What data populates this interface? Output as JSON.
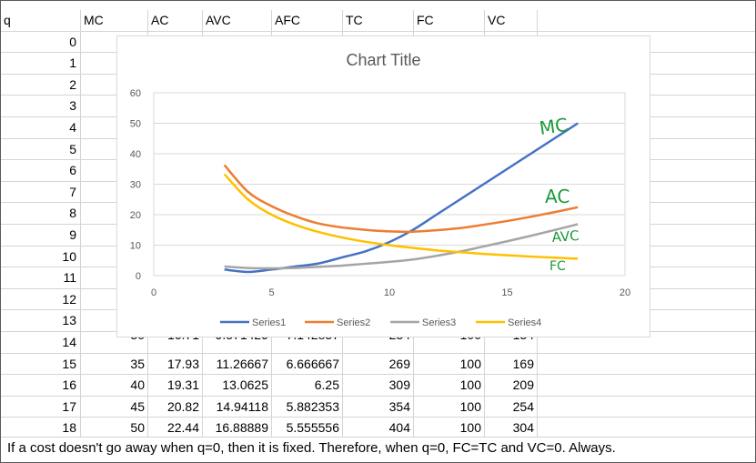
{
  "sheet": {
    "headers": [
      "q",
      "MC",
      "AC",
      "AVC",
      "AFC",
      "TC",
      "FC",
      "VC"
    ],
    "row_labels": [
      "0",
      "1",
      "2",
      "3",
      "4",
      "5",
      "6",
      "7",
      "8",
      "9",
      "10",
      "11",
      "12",
      "13",
      "14",
      "15",
      "16",
      "17",
      "18"
    ],
    "visible_rows": [
      {
        "q": "15",
        "MC": "35",
        "AC": "17.93",
        "AVC": "11.26667",
        "AFC": "6.666667",
        "TC": "269",
        "FC": "100",
        "VC": "169"
      },
      {
        "q": "16",
        "MC": "40",
        "AC": "19.31",
        "AVC": "13.0625",
        "AFC": "6.25",
        "TC": "309",
        "FC": "100",
        "VC": "209"
      },
      {
        "q": "17",
        "MC": "45",
        "AC": "20.82",
        "AVC": "14.94118",
        "AFC": "5.882353",
        "TC": "354",
        "FC": "100",
        "VC": "254"
      },
      {
        "q": "18",
        "MC": "50",
        "AC": "22.44",
        "AVC": "16.88889",
        "AFC": "5.555556",
        "TC": "404",
        "FC": "100",
        "VC": "304"
      }
    ],
    "partial_row_14": {
      "MC": "30",
      "AC": "16.71",
      "AVC": "9.571429",
      "AFC": "7.142857",
      "TC": "234",
      "FC": "100",
      "VC": "134"
    },
    "footnote": "If a cost doesn't go away when q=0, then it is fixed. Therefore, when q=0, FC=TC and VC=0. Always."
  },
  "chart_data": {
    "type": "scatter",
    "title": "Chart Title",
    "xlim": [
      0,
      20
    ],
    "ylim": [
      0,
      60
    ],
    "x_ticks": [
      0,
      5,
      10,
      15,
      20
    ],
    "y_ticks": [
      0,
      10,
      20,
      30,
      40,
      50,
      60
    ],
    "grid": true,
    "legend_position": "bottom",
    "series": [
      {
        "name": "Series1",
        "color": "#4472C4",
        "x": [
          3,
          4,
          5,
          6,
          7,
          8,
          9,
          10,
          11,
          12,
          13,
          14,
          15,
          16,
          17,
          18
        ],
        "y": [
          2,
          1.2,
          2,
          3,
          4,
          6,
          8,
          11,
          15,
          20,
          25,
          30,
          35,
          40,
          45,
          50
        ]
      },
      {
        "name": "Series2",
        "color": "#ED7D31",
        "x": [
          3,
          4,
          5,
          6,
          7,
          8,
          9,
          10,
          11,
          12,
          13,
          14,
          15,
          16,
          17,
          18
        ],
        "y": [
          36.3,
          27.5,
          22.8,
          19.5,
          17.1,
          15.8,
          15,
          14.5,
          14.4,
          14.9,
          15.6,
          16.7,
          17.93,
          19.31,
          20.82,
          22.44
        ]
      },
      {
        "name": "Series3",
        "color": "#A5A5A5",
        "x": [
          3,
          4,
          5,
          6,
          7,
          8,
          9,
          10,
          11,
          12,
          13,
          14,
          15,
          16,
          17,
          18
        ],
        "y": [
          3,
          2.5,
          2.4,
          2.5,
          2.9,
          3.3,
          3.9,
          4.5,
          5.3,
          6.5,
          7.9,
          9.57,
          11.27,
          13.06,
          14.94,
          16.89
        ]
      },
      {
        "name": "Series4",
        "color": "#FFC000",
        "x": [
          3,
          4,
          5,
          6,
          7,
          8,
          9,
          10,
          11,
          12,
          13,
          14,
          15,
          16,
          17,
          18
        ],
        "y": [
          33.3,
          25,
          20,
          16.7,
          14.3,
          12.5,
          11.1,
          10,
          9.1,
          8.3,
          7.7,
          7.14,
          6.67,
          6.25,
          5.88,
          5.56
        ]
      }
    ],
    "annotations": [
      {
        "text": "MC",
        "color": "#1a9a3a"
      },
      {
        "text": "AC",
        "color": "#1a9a3a"
      },
      {
        "text": "AVC",
        "color": "#1a9a3a"
      },
      {
        "text": "FC",
        "color": "#1a9a3a"
      }
    ]
  }
}
